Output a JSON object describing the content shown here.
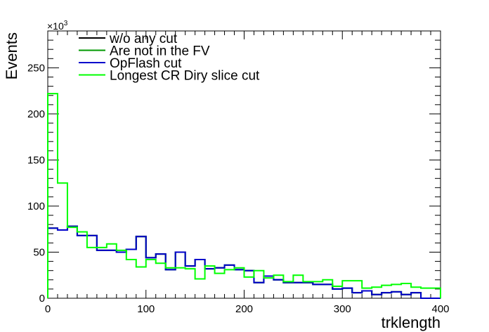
{
  "chart_data": {
    "type": "step-histogram",
    "xlabel": "trklength",
    "ylabel": "Events",
    "y_exponent_label": "×10³",
    "xlim": [
      0,
      400
    ],
    "ylim": [
      0,
      290
    ],
    "bin_width": 10,
    "x_ticks": [
      0,
      100,
      200,
      300,
      400
    ],
    "x_tick_labels": [
      "0",
      "100",
      "200",
      "300",
      "400"
    ],
    "y_ticks": [
      0,
      50,
      100,
      150,
      200,
      250
    ],
    "y_tick_labels": [
      "0",
      "50",
      "100",
      "150",
      "200",
      "250"
    ],
    "legend_position": "top-left",
    "series": [
      {
        "name": "w/o any cut",
        "color": "#000000",
        "values": [
          76,
          74,
          78,
          68,
          68,
          52,
          52,
          50,
          53,
          67,
          44,
          48,
          31,
          50,
          35,
          42,
          32,
          33,
          36,
          31,
          30,
          17,
          24,
          20,
          17,
          17,
          17,
          15,
          15,
          10,
          11,
          6,
          8,
          4,
          6,
          7,
          4,
          6,
          0,
          0
        ]
      },
      {
        "name": "Are not in the FV",
        "color": "#009900",
        "values": [
          76,
          74,
          78,
          68,
          68,
          52,
          52,
          50,
          53,
          67,
          44,
          48,
          31,
          50,
          35,
          42,
          32,
          33,
          36,
          31,
          30,
          17,
          24,
          20,
          17,
          17,
          17,
          15,
          15,
          10,
          11,
          6,
          8,
          4,
          6,
          7,
          4,
          6,
          0,
          0
        ]
      },
      {
        "name": "OpFlash cut",
        "color": "#0000cc",
        "values": [
          76,
          74,
          78,
          68,
          68,
          52,
          52,
          50,
          53,
          67,
          44,
          48,
          31,
          50,
          35,
          42,
          32,
          33,
          36,
          31,
          30,
          17,
          24,
          20,
          17,
          17,
          17,
          15,
          15,
          10,
          11,
          6,
          8,
          4,
          6,
          7,
          4,
          6,
          0,
          0
        ]
      },
      {
        "name": "Longest CR Diry slice cut",
        "color": "#00ff00",
        "values": [
          222,
          125,
          77,
          72,
          55,
          55,
          59,
          52,
          42,
          34,
          42,
          38,
          33,
          33,
          32,
          21,
          35,
          27,
          31,
          33,
          23,
          30,
          22,
          25,
          18,
          25,
          18,
          18,
          20,
          13,
          19,
          19,
          11,
          12,
          14,
          15,
          16,
          12,
          11,
          11
        ]
      }
    ]
  }
}
